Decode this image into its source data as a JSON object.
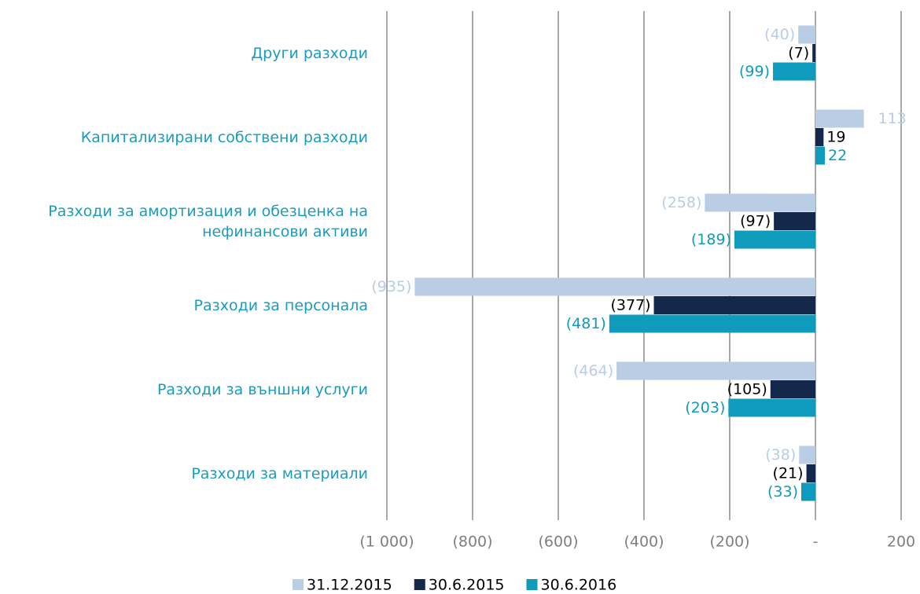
{
  "chart_data": {
    "type": "barh",
    "categories": [
      "Други разходи",
      "Капитализирани собствени разходи",
      "Разходи за амортизация и обезценка на нефинансови активи",
      "Разходи за персонала",
      "Разходи за външни услуги",
      "Разходи за материали"
    ],
    "series": [
      {
        "name": "31.12.2015",
        "color": "#b9cde5",
        "label_color": "#b9cde5",
        "values": [
          -40,
          113,
          -258,
          -935,
          -464,
          -38
        ],
        "value_labels": [
          "(40)",
          "113",
          "(258)",
          "(935)",
          "(464)",
          "(38)"
        ]
      },
      {
        "name": "30.6.2015",
        "color": "#14284b",
        "label_color": "#000000",
        "values": [
          -7,
          19,
          -97,
          -377,
          -105,
          -21
        ],
        "value_labels": [
          "(7)",
          "19",
          "(97)",
          "(377)",
          "(105)",
          "(21)"
        ]
      },
      {
        "name": "30.6.2016",
        "color": "#0f9bbb",
        "label_color": "#0f9bbb",
        "values": [
          -99,
          22,
          -189,
          -481,
          -203,
          -33
        ],
        "value_labels": [
          "(99)",
          "22",
          "(189)",
          "(481)",
          "(203)",
          "(33)"
        ]
      }
    ],
    "xlim": [
      -1000,
      200
    ],
    "xticks": [
      {
        "value": -1000,
        "label": "(1 000)"
      },
      {
        "value": -800,
        "label": "(800)"
      },
      {
        "value": -600,
        "label": "(600)"
      },
      {
        "value": -400,
        "label": "(400)"
      },
      {
        "value": -200,
        "label": "(200)"
      },
      {
        "value": 0,
        "label": "-"
      },
      200
    ],
    "grid": true,
    "legend": "bottom"
  }
}
